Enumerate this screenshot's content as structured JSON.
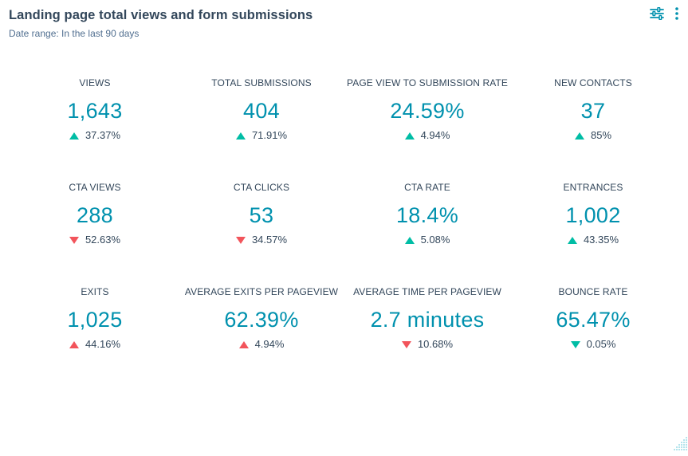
{
  "header": {
    "title": "Landing page total views and form submissions",
    "subtitle": "Date range:  In the last 90 days"
  },
  "icons": {
    "filter": "sliders-icon",
    "more": "vertical-dots-icon",
    "resize": "resize-grip-icon"
  },
  "colors": {
    "value": "#0091ae",
    "up": "#00bda5",
    "down_bad": "#f2545b",
    "down_good": "#00bda5",
    "text": "#33475b"
  },
  "metrics": [
    {
      "label": "VIEWS",
      "value": "1,643",
      "change": "37.37%",
      "direction": "up"
    },
    {
      "label": "TOTAL SUBMISSIONS",
      "value": "404",
      "change": "71.91%",
      "direction": "up"
    },
    {
      "label": "PAGE VIEW TO SUBMISSION RATE",
      "value": "24.59%",
      "change": "4.94%",
      "direction": "up"
    },
    {
      "label": "NEW CONTACTS",
      "value": "37",
      "change": "85%",
      "direction": "up"
    },
    {
      "label": "CTA VIEWS",
      "value": "288",
      "change": "52.63%",
      "direction": "down"
    },
    {
      "label": "CTA CLICKS",
      "value": "53",
      "change": "34.57%",
      "direction": "down"
    },
    {
      "label": "CTA RATE",
      "value": "18.4%",
      "change": "5.08%",
      "direction": "up"
    },
    {
      "label": "ENTRANCES",
      "value": "1,002",
      "change": "43.35%",
      "direction": "up"
    },
    {
      "label": "EXITS",
      "value": "1,025",
      "change": "44.16%",
      "direction": "up-bad"
    },
    {
      "label": "AVERAGE EXITS PER PAGEVIEW",
      "value": "62.39%",
      "change": "4.94%",
      "direction": "up-bad"
    },
    {
      "label": "AVERAGE TIME PER PAGEVIEW",
      "value": "2.7 minutes",
      "change": "10.68%",
      "direction": "down"
    },
    {
      "label": "BOUNCE RATE",
      "value": "65.47%",
      "change": "0.05%",
      "direction": "down-good"
    }
  ]
}
